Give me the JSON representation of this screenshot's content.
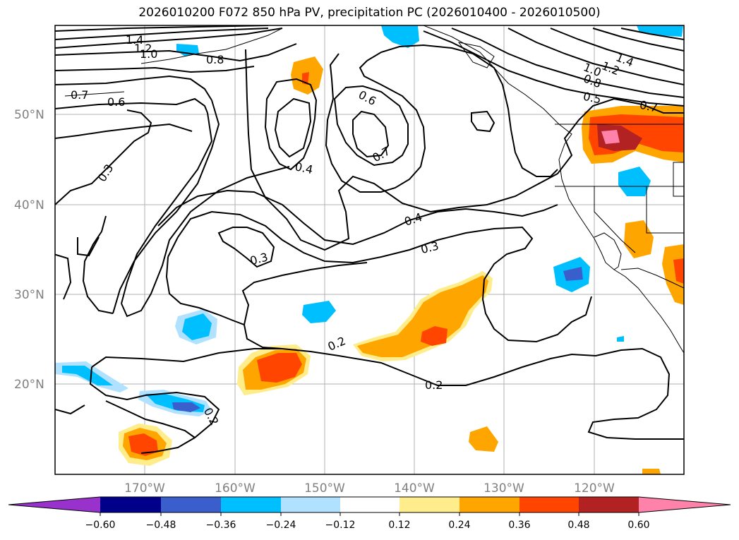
{
  "title": "2026010200 F072 850 hPa PV, precipitation PC (2026010400 - 2026010500)",
  "lat_labels": [
    "50°N",
    "40°N",
    "30°N",
    "20°N"
  ],
  "lon_labels": [
    "170°W",
    "160°W",
    "150°W",
    "140°W",
    "130°W",
    "120°W"
  ],
  "contour_labels": [
    "1.4",
    "1.2",
    "1.0",
    "0.8",
    "0.7",
    "0.6",
    "0.3",
    "0.6",
    "0.7",
    "0.4",
    "0.4",
    "0.3",
    "0.3",
    "0.2",
    "0.2",
    "0.2",
    "1.4",
    "1.2",
    "1.0",
    "0.8",
    "0.5",
    "0.7"
  ],
  "colorbar": {
    "ticks": [
      "−0.60",
      "−0.48",
      "−0.36",
      "−0.24",
      "−0.12",
      "0.12",
      "0.24",
      "0.36",
      "0.48",
      "0.60"
    ],
    "colors": {
      "under": "#9932cc",
      "neg_060": "#00008b",
      "neg_048": "#3a5fcd",
      "neg_036": "#00bfff",
      "neg_024": "#b0e2ff",
      "neutral": "#ffffff",
      "pos_012": "#ffec8b",
      "pos_024": "#ffa500",
      "pos_036": "#ff4500",
      "pos_048": "#b22222",
      "over": "#ff82ab"
    }
  }
}
